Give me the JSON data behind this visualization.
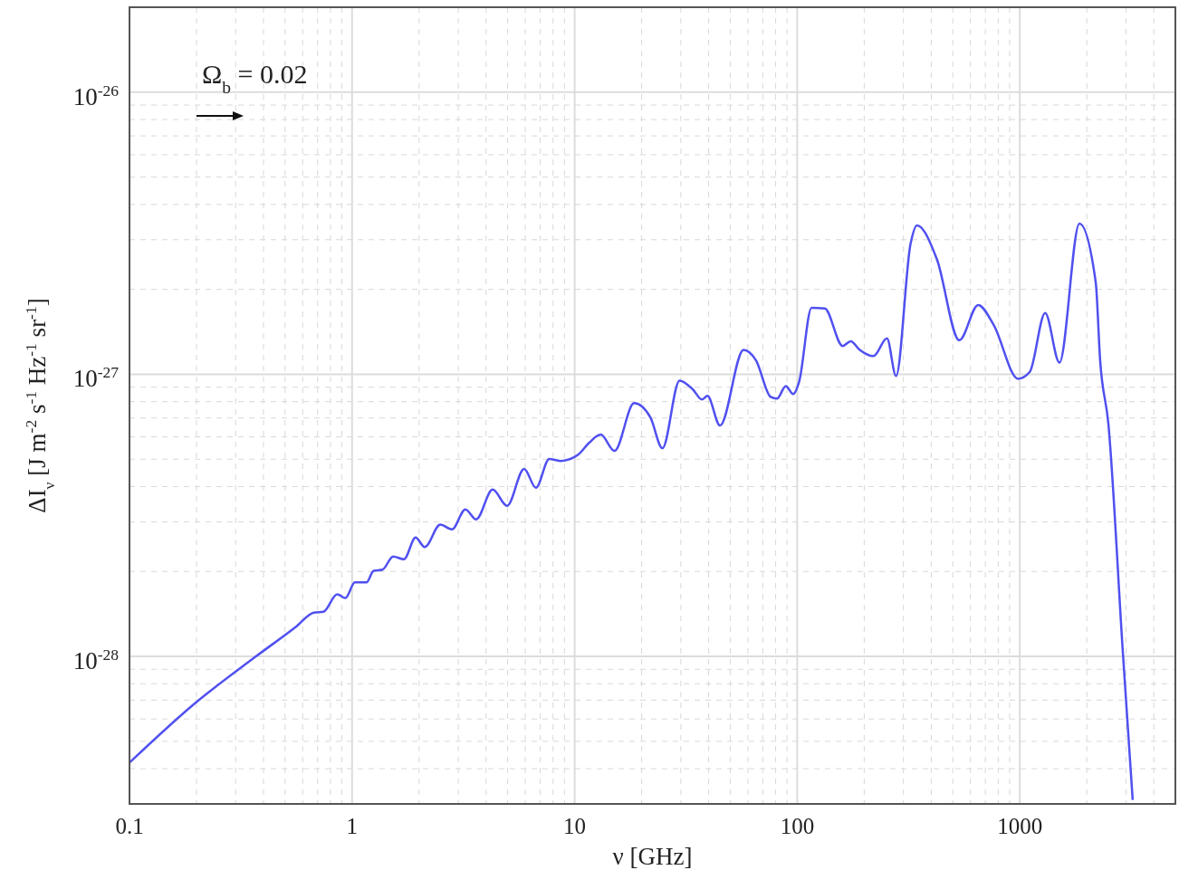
{
  "chart_data": {
    "type": "line",
    "xlabel": "ν  [GHz]",
    "ylabel": "ΔI$_{ν}$  [J m$^{-2}$ s$^{-1}$ Hz$^{-1}$ sr$^{-1}$]",
    "annotations": [
      "Ω$_{b}$ = 0.02"
    ],
    "log": "xy",
    "grid": true,
    "marker": "none",
    "line_style": "solid",
    "xlim": [
      0.1,
      5000
    ],
    "xticks": [
      0.1,
      1,
      10,
      100,
      1000
    ],
    "ylim": [
      3e-29,
      2e-26
    ],
    "yticks": [
      {
        "value": 1e-28,
        "label": "10$^{-28}$"
      },
      {
        "value": 1e-27,
        "label": "10$^{-27}$"
      },
      {
        "value": 1e-26,
        "label": "10$^{-26}$"
      }
    ],
    "series": [
      {
        "color": "#5050f0",
        "x": [
          0.1,
          0.196,
          0.37,
          0.557,
          0.673,
          0.744,
          0.857,
          0.933,
          1.03,
          1.16,
          1.25,
          1.37,
          1.53,
          1.71,
          1.93,
          2.12,
          2.49,
          2.81,
          3.23,
          3.61,
          4.28,
          4.97,
          5.93,
          6.7,
          7.69,
          8.61,
          10.4,
          11.6,
          13.1,
          15.1,
          18.5,
          21.9,
          24.8,
          29.6,
          34,
          37.3,
          39.5,
          45,
          57.4,
          65.3,
          75.9,
          81.1,
          88.9,
          95.9,
          102,
          116,
          133,
          160,
          174,
          191,
          220,
          253,
          278,
          323,
          345,
          424,
          535,
          650,
          762,
          982,
          1109,
          1300,
          1507,
          1853,
          2193,
          2296,
          2500,
          2900,
          3215
        ],
        "values": [
          4.2e-29,
          6.8e-29,
          1e-28,
          1.27e-28,
          1.43e-28,
          1.44e-28,
          1.66e-28,
          1.61e-28,
          1.83e-28,
          1.83e-28,
          2.01e-28,
          2.03e-28,
          2.26e-28,
          2.21e-28,
          2.64e-28,
          2.44e-28,
          2.93e-28,
          2.82e-28,
          3.32e-28,
          3.06e-28,
          3.9e-28,
          3.42e-28,
          4.62e-28,
          3.96e-28,
          5.01e-28,
          4.93e-28,
          5.2e-28,
          5.71e-28,
          6.11e-28,
          5.35e-28,
          7.9e-28,
          7.03e-28,
          5.47e-28,
          9.5e-28,
          8.83e-28,
          8.14e-28,
          8.38e-28,
          6.58e-28,
          1.22e-27,
          1.12e-27,
          8.32e-28,
          8.2e-28,
          9.08e-28,
          8.51e-28,
          9.42e-28,
          1.72e-27,
          1.71e-27,
          1.26e-27,
          1.31e-27,
          1.22e-27,
          1.16e-27,
          1.34e-27,
          9.86e-28,
          2.9e-27,
          3.37e-27,
          2.56e-27,
          1.32e-27,
          1.76e-27,
          1.5e-27,
          9.64e-28,
          1.02e-27,
          1.65e-27,
          1.1e-27,
          3.42e-27,
          2.12e-27,
          1.12e-27,
          6.67e-28,
          1.05e-28,
          3.1e-29
        ]
      }
    ]
  }
}
